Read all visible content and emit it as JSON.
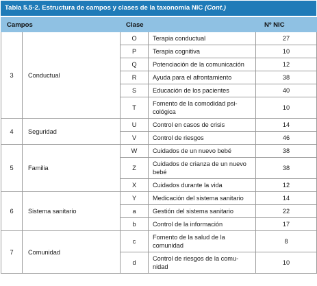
{
  "caption": {
    "title": "Tabla 5.5-2. Estructura de campos y clases de la taxonomía NIC",
    "cont": "(Cont.)"
  },
  "headers": {
    "campos": "Campos",
    "clase": "Clase",
    "nic": "Nº NIC"
  },
  "groups": [
    {
      "num": "3",
      "name": "Conductual",
      "rows": [
        {
          "code": "O",
          "label": "Terapia conductual",
          "nic": "27"
        },
        {
          "code": "P",
          "label": "Terapia cognitiva",
          "nic": "10"
        },
        {
          "code": "Q",
          "label": "Potenciación de la comunicación",
          "nic": "12"
        },
        {
          "code": "R",
          "label": "Ayuda para el afrontamiento",
          "nic": "38"
        },
        {
          "code": "S",
          "label": "Educación de los pacientes",
          "nic": "40"
        },
        {
          "code": "T",
          "label": "Fomento de la comodidad psi-cológica",
          "nic": "10"
        }
      ]
    },
    {
      "num": "4",
      "name": "Seguridad",
      "rows": [
        {
          "code": "U",
          "label": "Control en casos de crisis",
          "nic": "14"
        },
        {
          "code": "V",
          "label": "Control de riesgos",
          "nic": "46"
        }
      ]
    },
    {
      "num": "5",
      "name": "Familia",
      "rows": [
        {
          "code": "W",
          "label": "Cuidados de un nuevo bebé",
          "nic": "38"
        },
        {
          "code": "Z",
          "label": "Cuidados de crianza de un nuevo bebé",
          "nic": "38"
        },
        {
          "code": "X",
          "label": "Cuidados durante la vida",
          "nic": "12"
        }
      ]
    },
    {
      "num": "6",
      "name": "Sistema sanitario",
      "rows": [
        {
          "code": "Y",
          "label": "Medicación del sistema sanitario",
          "nic": "14"
        },
        {
          "code": "a",
          "label": "Gestión del sistema sanitario",
          "nic": "22"
        },
        {
          "code": "b",
          "label": "Control de la información",
          "nic": "17"
        }
      ]
    },
    {
      "num": "7",
      "name": "Comunidad",
      "rows": [
        {
          "code": "c",
          "label": "Fomento de la salud de la comunidad",
          "nic": "8"
        },
        {
          "code": "d",
          "label": "Control de riesgos de la comu-nidad",
          "nic": "10"
        }
      ]
    }
  ]
}
